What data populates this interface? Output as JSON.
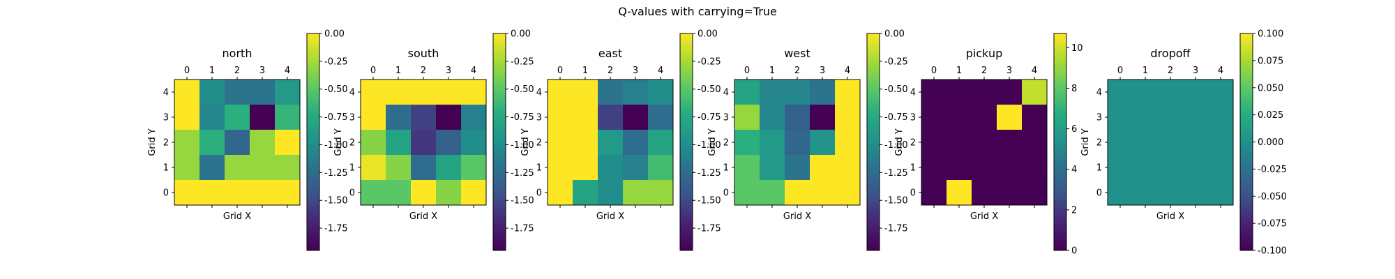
{
  "figure": {
    "title": "Q-values with carrying=True"
  },
  "chart_data": [
    {
      "type": "heatmap",
      "title": "north",
      "xlabel": "Grid X",
      "ylabel": "Grid Y",
      "x_ticks": [
        "0",
        "1",
        "2",
        "3",
        "4"
      ],
      "y_ticks": [
        "0",
        "1",
        "2",
        "3",
        "4"
      ],
      "colormap": "viridis",
      "clim": [
        -1.95,
        0.0
      ],
      "colorbar_ticks": [
        "0.00",
        "-0.25",
        "-0.50",
        "-0.75",
        "-1.00",
        "-1.25",
        "-1.50",
        "-1.75"
      ],
      "colorbar_tick_values": [
        0.0,
        -0.25,
        -0.5,
        -0.75,
        -1.0,
        -1.25,
        -1.5,
        -1.75
      ],
      "grid_rows_top_to_bottom_y4_to_y0": [
        [
          0.0,
          -1.0,
          -1.2,
          -1.2,
          -0.9
        ],
        [
          0.0,
          -1.05,
          -0.7,
          -1.95,
          -0.65
        ],
        [
          -0.3,
          -0.7,
          -1.3,
          -0.3,
          0.0
        ],
        [
          -0.3,
          -1.2,
          -0.3,
          -0.3,
          -0.3
        ],
        [
          0.0,
          0.0,
          0.0,
          0.0,
          0.0
        ]
      ]
    },
    {
      "type": "heatmap",
      "title": "south",
      "xlabel": "Grid X",
      "ylabel": "Grid Y",
      "x_ticks": [
        "0",
        "1",
        "2",
        "3",
        "4"
      ],
      "y_ticks": [
        "0",
        "1",
        "2",
        "3",
        "4"
      ],
      "colormap": "viridis",
      "clim": [
        -1.95,
        0.0
      ],
      "colorbar_ticks": [
        "0.00",
        "-0.25",
        "-0.50",
        "-0.75",
        "-1.00",
        "-1.25",
        "-1.50",
        "-1.75"
      ],
      "colorbar_tick_values": [
        0.0,
        -0.25,
        -0.5,
        -0.75,
        -1.0,
        -1.25,
        -1.5,
        -1.75
      ],
      "grid_rows_top_to_bottom_y4_to_y0": [
        [
          0.0,
          0.0,
          0.0,
          0.0,
          0.0
        ],
        [
          0.0,
          -1.25,
          -1.55,
          -1.95,
          -1.1
        ],
        [
          -0.35,
          -0.8,
          -1.6,
          -1.35,
          -1.0
        ],
        [
          -0.05,
          -0.35,
          -1.25,
          -0.8,
          -0.5
        ],
        [
          -0.5,
          -0.5,
          0.0,
          -0.35,
          0.0
        ]
      ]
    },
    {
      "type": "heatmap",
      "title": "east",
      "xlabel": "Grid X",
      "ylabel": "Grid Y",
      "x_ticks": [
        "0",
        "1",
        "2",
        "3",
        "4"
      ],
      "y_ticks": [
        "0",
        "1",
        "2",
        "3",
        "4"
      ],
      "colormap": "viridis",
      "clim": [
        -1.95,
        0.0
      ],
      "colorbar_ticks": [
        "0.00",
        "-0.25",
        "-0.50",
        "-0.75",
        "-1.00",
        "-1.25",
        "-1.50",
        "-1.75"
      ],
      "colorbar_tick_values": [
        0.0,
        -0.25,
        -0.5,
        -0.75,
        -1.0,
        -1.25,
        -1.5,
        -1.75
      ],
      "grid_rows_top_to_bottom_y4_to_y0": [
        [
          0.0,
          0.0,
          -1.2,
          -1.1,
          -1.0
        ],
        [
          0.0,
          0.0,
          -1.55,
          -1.95,
          -1.25
        ],
        [
          0.0,
          0.0,
          -0.9,
          -1.25,
          -0.8
        ],
        [
          0.0,
          0.0,
          -1.0,
          -1.1,
          -0.6
        ],
        [
          0.0,
          -0.8,
          -1.0,
          -0.3,
          -0.3
        ]
      ]
    },
    {
      "type": "heatmap",
      "title": "west",
      "xlabel": "Grid X",
      "ylabel": "Grid Y",
      "x_ticks": [
        "0",
        "1",
        "2",
        "3",
        "4"
      ],
      "y_ticks": [
        "0",
        "1",
        "2",
        "3",
        "4"
      ],
      "colormap": "viridis",
      "clim": [
        -1.95,
        0.0
      ],
      "colorbar_ticks": [
        "0.00",
        "-0.25",
        "-0.50",
        "-0.75",
        "-1.00",
        "-1.25",
        "-1.50",
        "-1.75"
      ],
      "colorbar_tick_values": [
        0.0,
        -0.25,
        -0.5,
        -0.75,
        -1.0,
        -1.25,
        -1.5,
        -1.75
      ],
      "grid_rows_top_to_bottom_y4_to_y0": [
        [
          -0.8,
          -1.05,
          -1.05,
          -1.2,
          0.0
        ],
        [
          -0.3,
          -1.05,
          -1.35,
          -1.95,
          0.0
        ],
        [
          -0.7,
          -0.9,
          -1.3,
          -0.95,
          0.0
        ],
        [
          -0.5,
          -0.9,
          -1.2,
          0.0,
          0.0
        ],
        [
          -0.5,
          -0.5,
          0.0,
          0.0,
          0.0
        ]
      ]
    },
    {
      "type": "heatmap",
      "title": "pickup",
      "xlabel": "Grid X",
      "ylabel": "Grid Y",
      "x_ticks": [
        "0",
        "1",
        "2",
        "3",
        "4"
      ],
      "y_ticks": [
        "0",
        "1",
        "2",
        "3",
        "4"
      ],
      "colormap": "viridis",
      "clim": [
        0,
        10.7
      ],
      "colorbar_ticks": [
        "10",
        "8",
        "6",
        "4",
        "2",
        "0"
      ],
      "colorbar_tick_values": [
        10,
        8,
        6,
        4,
        2,
        0
      ],
      "grid_rows_top_to_bottom_y4_to_y0": [
        [
          0,
          0,
          0,
          0,
          9.8
        ],
        [
          0,
          0,
          0,
          10.7,
          0
        ],
        [
          0,
          0,
          0,
          0,
          0
        ],
        [
          0,
          0,
          0,
          0,
          0
        ],
        [
          0,
          10.7,
          0,
          0,
          0
        ]
      ]
    },
    {
      "type": "heatmap",
      "title": "dropoff",
      "xlabel": "Grid X",
      "ylabel": "Grid Y",
      "x_ticks": [
        "0",
        "1",
        "2",
        "3",
        "4"
      ],
      "y_ticks": [
        "0",
        "1",
        "2",
        "3",
        "4"
      ],
      "colormap": "viridis",
      "clim": [
        -0.1,
        0.1
      ],
      "colorbar_ticks": [
        "0.100",
        "0.075",
        "0.050",
        "0.025",
        "0.000",
        "-0.025",
        "-0.050",
        "-0.075",
        "-0.100"
      ],
      "colorbar_tick_values": [
        0.1,
        0.075,
        0.05,
        0.025,
        0.0,
        -0.025,
        -0.05,
        -0.075,
        -0.1
      ],
      "grid_rows_top_to_bottom_y4_to_y0": [
        [
          0,
          0,
          0,
          0,
          0
        ],
        [
          0,
          0,
          0,
          0,
          0
        ],
        [
          0,
          0,
          0,
          0,
          0
        ],
        [
          0,
          0,
          0,
          0,
          0
        ],
        [
          0,
          0,
          0,
          0,
          0
        ]
      ]
    }
  ]
}
